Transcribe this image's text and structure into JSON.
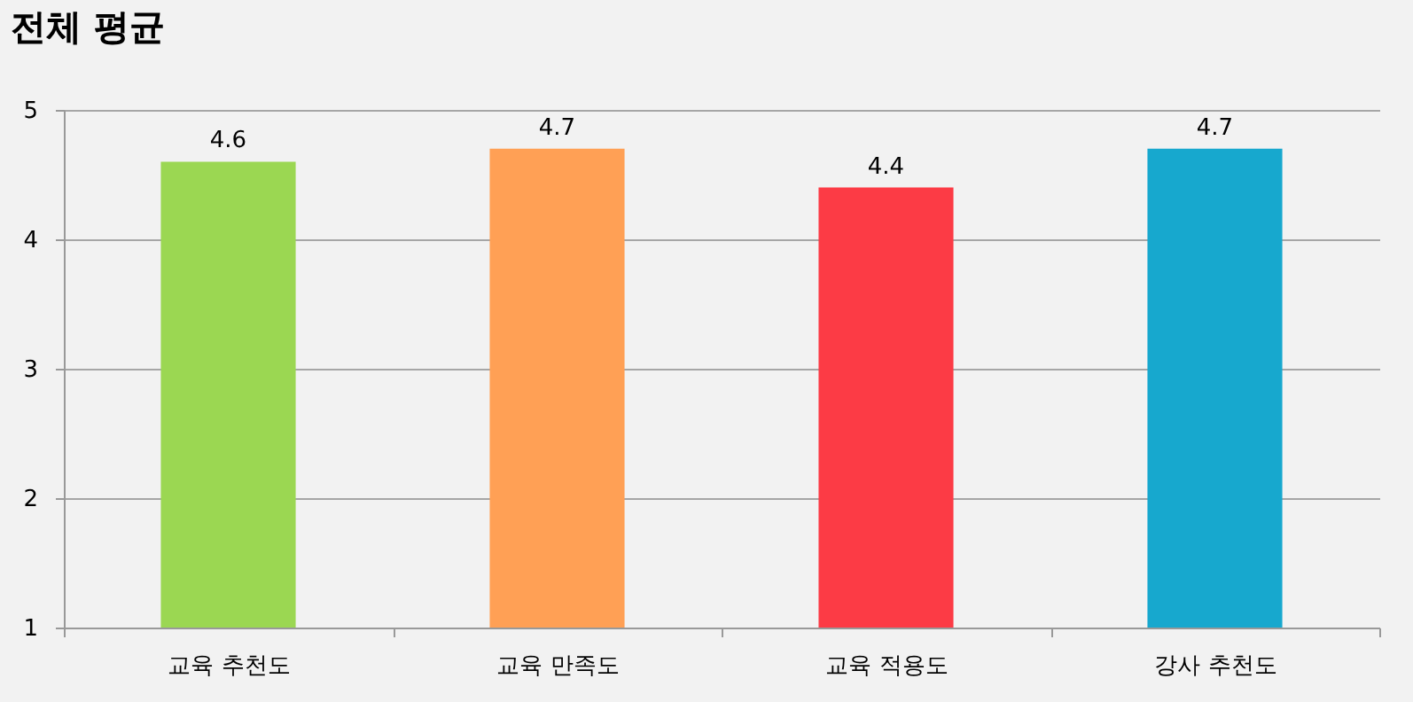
{
  "chart_data": {
    "type": "bar",
    "title": "전체 평균",
    "categories": [
      "교육 추천도",
      "교육 만족도",
      "교육 적용도",
      "강사 추천도"
    ],
    "values": [
      4.6,
      4.7,
      4.4,
      4.7
    ],
    "colors": [
      "#9bd752",
      "#ffa055",
      "#fc3b45",
      "#17a8ce"
    ],
    "ylim": [
      1,
      5
    ],
    "yticks": [
      1,
      2,
      3,
      4,
      5
    ],
    "grid": "y",
    "data_labels": true
  }
}
